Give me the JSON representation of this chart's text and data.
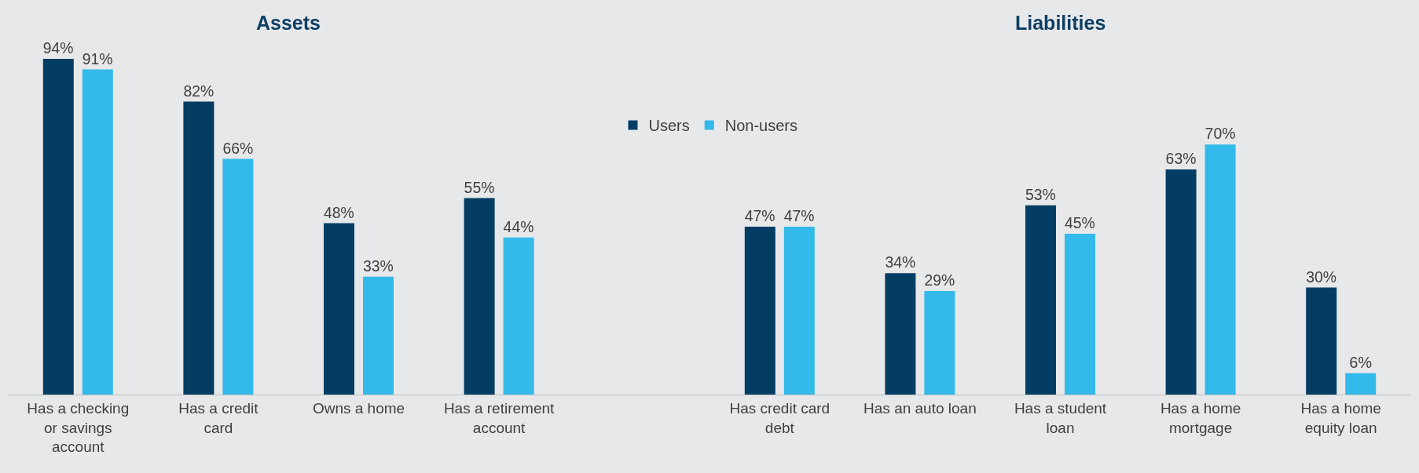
{
  "chart_data": {
    "type": "bar",
    "annotations": [
      "Assets",
      "Liabilities"
    ],
    "categories": [
      "Has a checking or savings account",
      "Has a credit card",
      "Owns a home",
      "Has a retirement account",
      null,
      "Has credit card debt",
      "Has an auto loan",
      "Has a student loan",
      "Has a home mortgage",
      "Has a home equity loan"
    ],
    "series": [
      {
        "name": "Users",
        "color": "#043d63",
        "values": [
          94,
          82,
          48,
          55,
          null,
          47,
          34,
          53,
          63,
          30
        ],
        "value_labels": [
          "94%",
          "82%",
          "48%",
          "55%",
          null,
          "47%",
          "34%",
          "53%",
          "63%",
          "30%"
        ]
      },
      {
        "name": "Non-users",
        "color": "#33b9ea",
        "values": [
          91,
          66,
          33,
          44,
          null,
          47,
          29,
          45,
          70,
          6
        ],
        "value_labels": [
          "91%",
          "66%",
          "33%",
          "44%",
          null,
          "47%",
          "29%",
          "45%",
          "70%",
          "6%"
        ]
      }
    ],
    "legend": "top",
    "grid": false
  }
}
